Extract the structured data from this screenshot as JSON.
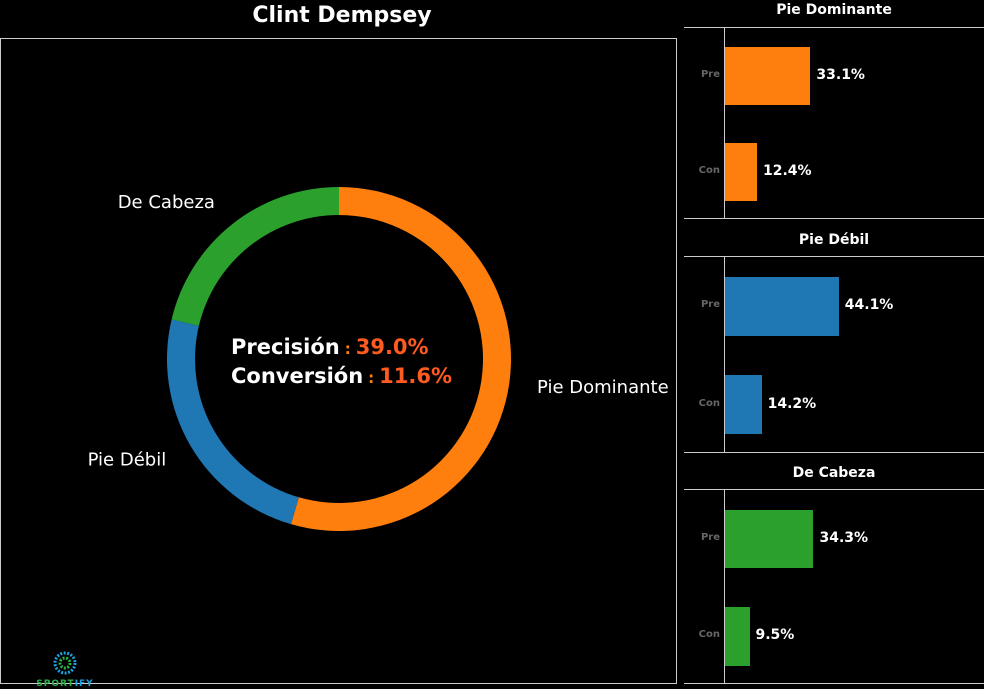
{
  "title": "Clint Dempsey",
  "colors": {
    "Pie Dominante": "#ff7f0e",
    "Pie Débil": "#1f77b4",
    "De Cabeza": "#2ca02c",
    "highlight": "#ff5a1f"
  },
  "center": {
    "precision_label": "Precisión",
    "precision_value": "39.0%",
    "conversion_label": "Conversión",
    "conversion_value": "11.6%",
    "separator": ":"
  },
  "logo": {
    "text_a": "SPORT",
    "text_b": "IFY"
  },
  "chart_data": [
    {
      "type": "pie",
      "donut": true,
      "labels": [
        "Pie Dominante",
        "Pie Débil",
        "De Cabeza"
      ],
      "values": [
        54.5,
        24.2,
        21.3
      ]
    },
    {
      "type": "bar",
      "orientation": "horizontal",
      "title": "Pie Dominante",
      "categories": [
        "Pre",
        "Con"
      ],
      "values": [
        33.1,
        12.4
      ],
      "labels": [
        "33.1%",
        "12.4%"
      ],
      "xlim": [
        0,
        100
      ]
    },
    {
      "type": "bar",
      "orientation": "horizontal",
      "title": "Pie Débil",
      "categories": [
        "Pre",
        "Con"
      ],
      "values": [
        44.1,
        14.2
      ],
      "labels": [
        "44.1%",
        "14.2%"
      ],
      "xlim": [
        0,
        100
      ]
    },
    {
      "type": "bar",
      "orientation": "horizontal",
      "title": "De Cabeza",
      "categories": [
        "Pre",
        "Con"
      ],
      "values": [
        34.3,
        9.5
      ],
      "labels": [
        "34.3%",
        "9.5%"
      ],
      "xlim": [
        0,
        100
      ]
    }
  ]
}
